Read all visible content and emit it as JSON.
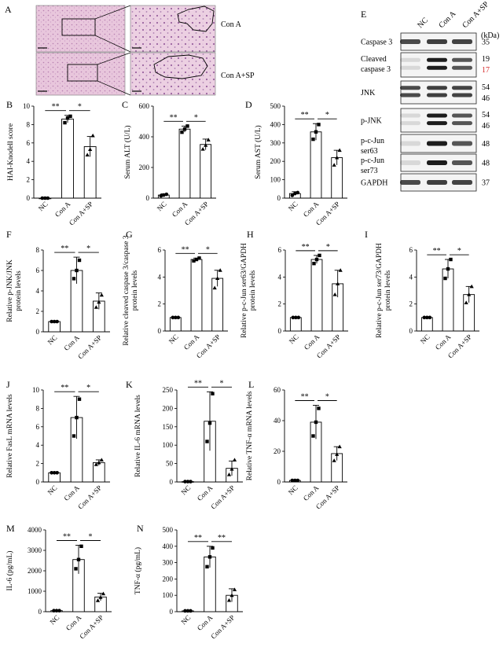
{
  "panels": {
    "A": {
      "letter": "A",
      "rows": [
        {
          "label": "Con A"
        },
        {
          "label": "Con A+SP"
        }
      ]
    },
    "E": {
      "letter": "E",
      "lanes": [
        "NC",
        "Con A",
        "Con A+SP"
      ],
      "unit": "(kDa)",
      "blots": [
        {
          "label": [
            "Caspase 3"
          ],
          "kda": [
            "35"
          ]
        },
        {
          "label": [
            "Cleaved",
            "caspase 3"
          ],
          "kda": [
            "19",
            "17"
          ]
        },
        {
          "label": [
            "JNK"
          ],
          "kda": [
            "54",
            "46"
          ]
        },
        {
          "label": [
            "p-JNK"
          ],
          "kda": [
            "54",
            "46"
          ]
        },
        {
          "label": [
            "p-c-Jun",
            "ser63"
          ],
          "kda": [
            "48"
          ]
        },
        {
          "label": [
            "p-c-Jun",
            "ser73"
          ],
          "kda": [
            "48"
          ]
        },
        {
          "label": [
            "GAPDH"
          ],
          "kda": [
            "37"
          ]
        }
      ],
      "highlight_color": "#d62828"
    }
  },
  "chart_data": [
    {
      "panel": "B",
      "type": "bar",
      "categories": [
        "NC",
        "Con A",
        "Con A+SP"
      ],
      "values": [
        0,
        8.6,
        5.6
      ],
      "errors": [
        0,
        0.4,
        1.1
      ],
      "points": [
        [
          0,
          0,
          0
        ],
        [
          8.2,
          8.7,
          8.9
        ],
        [
          4.7,
          5.3,
          6.8
        ]
      ],
      "ylabel": "HAI-Knodell score",
      "ylim": [
        0,
        10
      ],
      "ticks": [
        0,
        2,
        4,
        6,
        8,
        10
      ],
      "sig": [
        {
          "from": 0,
          "to": 1,
          "text": "**"
        },
        {
          "from": 1,
          "to": 2,
          "text": "*"
        }
      ],
      "fills": [
        "#ffffff",
        "#ffffff",
        "#ffffff"
      ]
    },
    {
      "panel": "C",
      "type": "bar",
      "categories": [
        "NC",
        "Con A",
        "Con A+SP"
      ],
      "values": [
        20,
        450,
        350
      ],
      "errors": [
        8,
        20,
        35
      ],
      "points": [
        [
          15,
          20,
          25
        ],
        [
          430,
          450,
          470
        ],
        [
          320,
          345,
          380
        ]
      ],
      "ylabel": "Serum ALT (U/L)",
      "ylim": [
        0,
        600
      ],
      "ticks": [
        0,
        200,
        400,
        600
      ],
      "sig": [
        {
          "from": 0,
          "to": 1,
          "text": "**"
        },
        {
          "from": 1,
          "to": 2,
          "text": "*"
        }
      ]
    },
    {
      "panel": "D",
      "type": "bar",
      "categories": [
        "NC",
        "Con A",
        "Con A+SP"
      ],
      "values": [
        25,
        360,
        220
      ],
      "errors": [
        10,
        45,
        40
      ],
      "points": [
        [
          15,
          25,
          30
        ],
        [
          320,
          360,
          400
        ],
        [
          180,
          220,
          260
        ]
      ],
      "ylabel": "Serum AST (U/L)",
      "ylim": [
        0,
        500
      ],
      "ticks": [
        0,
        100,
        200,
        300,
        400,
        500
      ],
      "sig": [
        {
          "from": 0,
          "to": 1,
          "text": "**"
        },
        {
          "from": 1,
          "to": 2,
          "text": "*"
        }
      ]
    },
    {
      "panel": "F",
      "type": "bar",
      "categories": [
        "NC",
        "Con A",
        "Con A+SP"
      ],
      "values": [
        1,
        6.0,
        3.0
      ],
      "errors": [
        0,
        1.3,
        0.8
      ],
      "points": [
        [
          1,
          1,
          1
        ],
        [
          5.2,
          6.0,
          7.0
        ],
        [
          2.4,
          2.9,
          3.6
        ]
      ],
      "ylabel": "Relative p-JNK/JNK\nprotein levels",
      "ylim": [
        0,
        8
      ],
      "ticks": [
        0,
        2,
        4,
        6,
        8
      ],
      "sig": [
        {
          "from": 0,
          "to": 1,
          "text": "**"
        },
        {
          "from": 1,
          "to": 2,
          "text": "*"
        }
      ]
    },
    {
      "panel": "G",
      "type": "bar",
      "categories": [
        "NC",
        "Con A",
        "Con A+SP"
      ],
      "values": [
        1,
        5.3,
        3.9
      ],
      "errors": [
        0,
        0.1,
        0.6
      ],
      "points": [
        [
          1,
          1,
          1
        ],
        [
          5.2,
          5.3,
          5.4
        ],
        [
          3.2,
          3.9,
          4.5
        ]
      ],
      "ylabel": "Relative cleaved caspase 3/caspase 3\nprotein levels",
      "ylim": [
        0,
        6
      ],
      "ticks": [
        0,
        2,
        4,
        6
      ],
      "sig": [
        {
          "from": 0,
          "to": 1,
          "text": "**"
        },
        {
          "from": 1,
          "to": 2,
          "text": "*"
        }
      ]
    },
    {
      "panel": "H",
      "type": "bar",
      "categories": [
        "NC",
        "Con A",
        "Con A+SP"
      ],
      "values": [
        1,
        5.3,
        3.5
      ],
      "errors": [
        0,
        0.3,
        1.0
      ],
      "points": [
        [
          1,
          1,
          1
        ],
        [
          5.0,
          5.3,
          5.6
        ],
        [
          2.7,
          3.5,
          4.5
        ]
      ],
      "ylabel": "Relative p-c-Jun ser63/GAPDH\nprotein levels",
      "ylim": [
        0,
        6
      ],
      "ticks": [
        0,
        2,
        4,
        6
      ],
      "sig": [
        {
          "from": 0,
          "to": 1,
          "text": "**"
        },
        {
          "from": 1,
          "to": 2,
          "text": "*"
        }
      ]
    },
    {
      "panel": "I",
      "type": "bar",
      "categories": [
        "NC",
        "Con A",
        "Con A+SP"
      ],
      "values": [
        1,
        4.6,
        2.7
      ],
      "errors": [
        0,
        0.7,
        0.6
      ],
      "points": [
        [
          1,
          1,
          1
        ],
        [
          3.9,
          4.6,
          5.3
        ],
        [
          2.1,
          2.7,
          3.3
        ]
      ],
      "ylabel": "Relative p-c-Jun ser73/GAPDH\nprotein levels",
      "ylim": [
        0,
        6
      ],
      "ticks": [
        0,
        2,
        4,
        6
      ],
      "sig": [
        {
          "from": 0,
          "to": 1,
          "text": "**"
        },
        {
          "from": 1,
          "to": 2,
          "text": "*"
        }
      ]
    },
    {
      "panel": "J",
      "type": "bar",
      "categories": [
        "NC",
        "Con A",
        "Con A+SP"
      ],
      "values": [
        1,
        7.0,
        2.1
      ],
      "errors": [
        0,
        2.3,
        0.3
      ],
      "points": [
        [
          1,
          1,
          1
        ],
        [
          5.0,
          7.0,
          9.0
        ],
        [
          1.9,
          2.1,
          2.4
        ]
      ],
      "ylabel": "Relative FasL mRNA levels",
      "ylim": [
        0,
        10
      ],
      "ticks": [
        0,
        2,
        4,
        6,
        8,
        10
      ],
      "sig": [
        {
          "from": 0,
          "to": 1,
          "text": "**"
        },
        {
          "from": 1,
          "to": 2,
          "text": "*"
        }
      ]
    },
    {
      "panel": "K",
      "type": "bar",
      "categories": [
        "NC",
        "Con A",
        "Con A+SP"
      ],
      "values": [
        1,
        165,
        37
      ],
      "errors": [
        0,
        80,
        20
      ],
      "points": [
        [
          1,
          1,
          1
        ],
        [
          110,
          160,
          240
        ],
        [
          20,
          35,
          60
        ]
      ],
      "ylabel": "Relative IL-6 mRNA levels",
      "ylim": [
        0,
        250
      ],
      "ticks": [
        0,
        50,
        100,
        150,
        200,
        250
      ],
      "sig": [
        {
          "from": 0,
          "to": 1,
          "text": "**"
        },
        {
          "from": 1,
          "to": 2,
          "text": "*"
        }
      ]
    },
    {
      "panel": "L",
      "type": "bar",
      "categories": [
        "NC",
        "Con A",
        "Con A+SP"
      ],
      "values": [
        1,
        39,
        18.5
      ],
      "errors": [
        0,
        11,
        4.5
      ],
      "points": [
        [
          1,
          1,
          1
        ],
        [
          30,
          39,
          48
        ],
        [
          14,
          18,
          23
        ]
      ],
      "ylabel": "Relative TNF-α mRNA levels",
      "ylim": [
        0,
        60
      ],
      "ticks": [
        0,
        20,
        40,
        60
      ],
      "sig": [
        {
          "from": 0,
          "to": 1,
          "text": "**"
        },
        {
          "from": 1,
          "to": 2,
          "text": "*"
        }
      ]
    },
    {
      "panel": "M",
      "type": "bar",
      "categories": [
        "NC",
        "Con A",
        "Con A+SP"
      ],
      "values": [
        50,
        2550,
        720
      ],
      "errors": [
        0,
        700,
        180
      ],
      "points": [
        [
          50,
          50,
          50
        ],
        [
          2100,
          2550,
          3200
        ],
        [
          550,
          700,
          880
        ]
      ],
      "ylabel": "IL-6 (pg/mL)",
      "ylim": [
        0,
        4000
      ],
      "ticks": [
        0,
        1000,
        2000,
        3000,
        4000
      ],
      "sig": [
        {
          "from": 0,
          "to": 1,
          "text": "**"
        },
        {
          "from": 1,
          "to": 2,
          "text": "*"
        }
      ]
    },
    {
      "panel": "N",
      "type": "bar",
      "categories": [
        "NC",
        "Con A",
        "Con A+SP"
      ],
      "values": [
        5,
        335,
        100
      ],
      "errors": [
        0,
        65,
        40
      ],
      "points": [
        [
          5,
          5,
          5
        ],
        [
          275,
          335,
          390
        ],
        [
          70,
          100,
          135
        ]
      ],
      "ylabel": "TNF-α (pg/mL)",
      "ylim": [
        0,
        500
      ],
      "ticks": [
        0,
        100,
        200,
        300,
        400,
        500
      ],
      "sig": [
        {
          "from": 0,
          "to": 1,
          "text": "**"
        },
        {
          "from": 1,
          "to": 2,
          "text": "**"
        }
      ]
    }
  ]
}
